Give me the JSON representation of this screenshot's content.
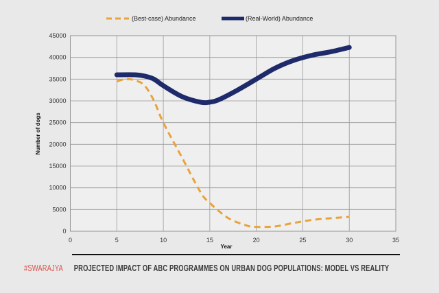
{
  "chart_data": {
    "type": "line",
    "title": "PROJECTED IMPACT OF ABC PROGRAMMES ON URBAN DOG POPULATIONS: MODEL VS REALITY",
    "brand": "#SWARAJYA",
    "xlabel": "Year",
    "ylabel": "Number of dogs",
    "xlim": [
      0,
      35
    ],
    "ylim": [
      0,
      45000
    ],
    "xticks": [
      0,
      5,
      10,
      15,
      20,
      25,
      30,
      35
    ],
    "yticks": [
      0,
      5000,
      10000,
      15000,
      20000,
      25000,
      30000,
      35000,
      40000,
      45000
    ],
    "grid": true,
    "legend_position": "top",
    "series": [
      {
        "name": "(Best-case) Abundance",
        "color": "#E8A33A",
        "style": "dashed",
        "x": [
          5,
          6,
          7,
          8,
          9,
          10,
          12,
          14,
          15,
          17,
          19,
          20,
          22,
          24,
          26,
          28,
          30
        ],
        "y": [
          34500,
          35000,
          34700,
          33500,
          30000,
          25000,
          17000,
          9000,
          6500,
          3000,
          1300,
          1000,
          1100,
          1900,
          2600,
          3000,
          3300
        ]
      },
      {
        "name": "(Real-World) Abundance",
        "color": "#1F2A6B",
        "style": "solid",
        "x": [
          5,
          7,
          8,
          9,
          10,
          12,
          14,
          15,
          16,
          18,
          20,
          22,
          24,
          26,
          28,
          30
        ],
        "y": [
          36000,
          36000,
          35700,
          35000,
          33500,
          31000,
          29700,
          29700,
          30300,
          32500,
          35000,
          37500,
          39300,
          40500,
          41300,
          42300
        ]
      }
    ]
  }
}
